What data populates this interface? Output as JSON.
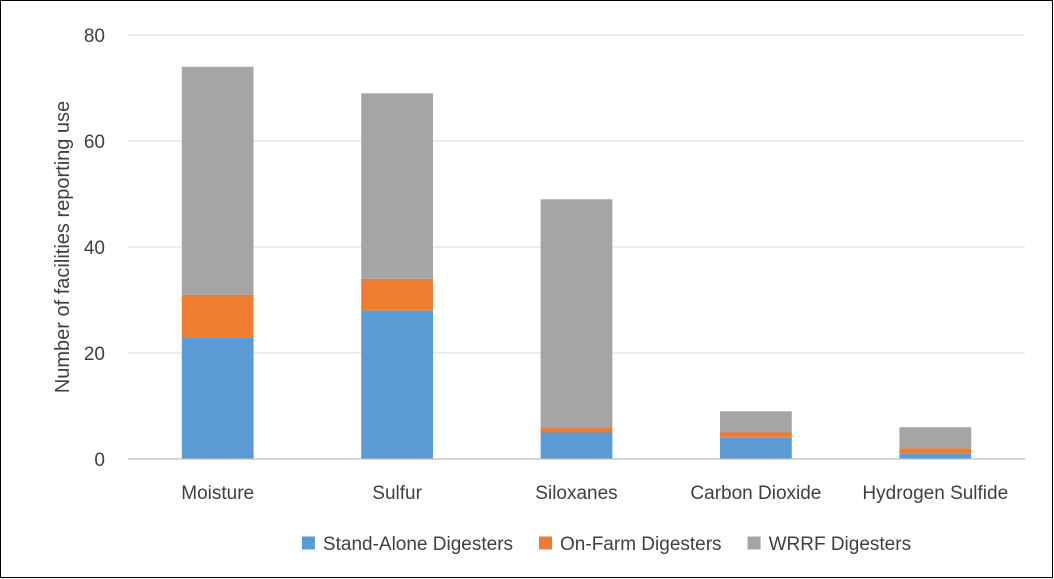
{
  "chart_data": {
    "type": "bar",
    "stacked": true,
    "title": "",
    "xlabel": "",
    "ylabel": "Number of facilities reporting use",
    "ylim": [
      0,
      80
    ],
    "yticks": [
      0,
      20,
      40,
      60,
      80
    ],
    "grid": true,
    "legend_position": "bottom",
    "categories": [
      "Moisture",
      "Sulfur",
      "Siloxanes",
      "Carbon Dioxide",
      "Hydrogen Sulfide"
    ],
    "series": [
      {
        "name": "Stand-Alone Digesters",
        "color": "#5B9BD5",
        "values": [
          23,
          28,
          5,
          4,
          1
        ]
      },
      {
        "name": "On-Farm Digesters",
        "color": "#ED7D31",
        "values": [
          8,
          6,
          1,
          1,
          1
        ]
      },
      {
        "name": "WRRF Digesters",
        "color": "#A5A5A5",
        "values": [
          43,
          35,
          43,
          4,
          4
        ]
      }
    ]
  }
}
